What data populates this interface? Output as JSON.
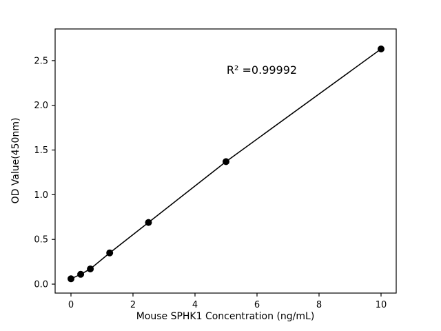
{
  "chart_data": {
    "type": "scatter",
    "title": "",
    "xlabel": "Mouse SPHK1 Concentration (ng/mL)",
    "ylabel": "OD Value(450nm)",
    "annotation": "R² =0.99992",
    "x": [
      0,
      0.313,
      0.625,
      1.25,
      2.5,
      5,
      10
    ],
    "y": [
      0.06,
      0.11,
      0.17,
      0.35,
      0.69,
      1.37,
      2.63
    ],
    "line": true,
    "line_color": "#000000",
    "marker_color": "#000000",
    "marker_radius": 5,
    "xlim": [
      -0.511,
      10.489
    ],
    "ylim": [
      -0.1,
      2.854
    ],
    "xticks": {
      "values": [
        0,
        2,
        4,
        6,
        8,
        10
      ],
      "labels": [
        "0",
        "2",
        "4",
        "6",
        "8",
        "10"
      ]
    },
    "yticks": {
      "values": [
        0.0,
        0.5,
        1.0,
        1.5,
        2.0,
        2.5
      ],
      "labels": [
        "0.0",
        "0.5",
        "1.0",
        "1.5",
        "2.0",
        "2.5"
      ]
    },
    "grid": false,
    "legend_position": "none",
    "background_color": "#ffffff"
  }
}
